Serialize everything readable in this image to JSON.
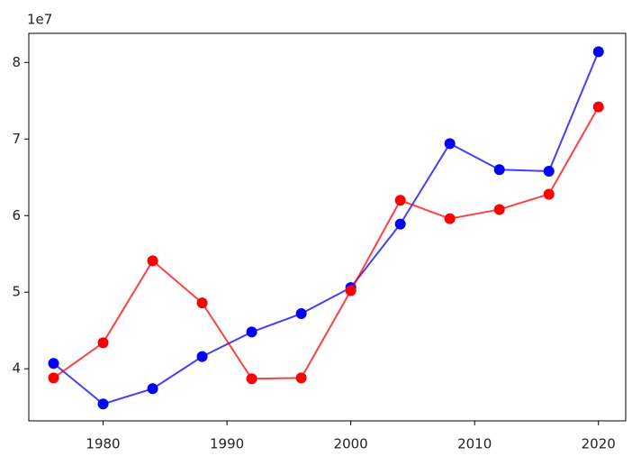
{
  "chart_data": {
    "type": "line",
    "y_offset_label": "1e7",
    "x": [
      1976,
      1980,
      1984,
      1988,
      1992,
      1996,
      2000,
      2004,
      2008,
      2012,
      2016,
      2020
    ],
    "series": [
      {
        "color": "#0000ff",
        "values": [
          4.07,
          3.54,
          3.74,
          4.16,
          4.48,
          4.72,
          5.06,
          5.89,
          6.94,
          6.6,
          6.58,
          8.14
        ]
      },
      {
        "color": "#ff0000",
        "values": [
          3.88,
          4.34,
          5.41,
          4.86,
          3.87,
          3.88,
          5.02,
          6.2,
          5.96,
          6.08,
          6.28,
          7.42
        ]
      }
    ],
    "xlim": [
      1974,
      2022.2
    ],
    "ylim": [
      3.32,
      8.38
    ],
    "xticks": [
      1980,
      1990,
      2000,
      2010,
      2020
    ],
    "yticks": [
      4,
      5,
      6,
      7,
      8
    ]
  }
}
